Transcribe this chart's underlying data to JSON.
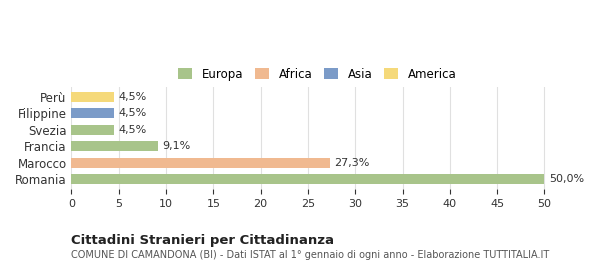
{
  "categories": [
    "Romania",
    "Marocco",
    "Francia",
    "Svezia",
    "Filippine",
    "Perù"
  ],
  "values": [
    50.0,
    27.3,
    9.1,
    4.5,
    4.5,
    4.5
  ],
  "labels": [
    "50,0%",
    "27,3%",
    "9,1%",
    "4,5%",
    "4,5%",
    "4,5%"
  ],
  "bar_colors": [
    "#a8c48a",
    "#f0b990",
    "#a8c48a",
    "#a8c48a",
    "#7b9bc8",
    "#f5d97a"
  ],
  "legend_items": [
    {
      "label": "Europa",
      "color": "#a8c48a"
    },
    {
      "label": "Africa",
      "color": "#f0b990"
    },
    {
      "label": "Asia",
      "color": "#7b9bc8"
    },
    {
      "label": "America",
      "color": "#f5d97a"
    }
  ],
  "xlim": [
    0,
    52
  ],
  "xticks": [
    0,
    5,
    10,
    15,
    20,
    25,
    30,
    35,
    40,
    45,
    50
  ],
  "title": "Cittadini Stranieri per Cittadinanza",
  "subtitle": "COMUNE DI CAMANDONA (BI) - Dati ISTAT al 1° gennaio di ogni anno - Elaborazione TUTTITALIA.IT",
  "background_color": "#ffffff",
  "grid_color": "#e0e0e0"
}
